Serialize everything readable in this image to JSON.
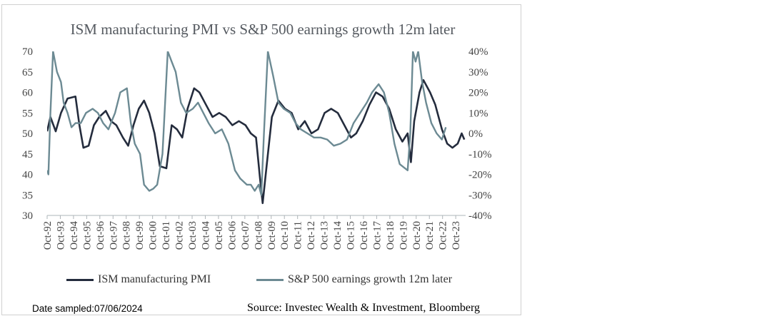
{
  "chart_data": {
    "type": "line",
    "title": "ISM manufacturing PMI vs S&P 500 earnings growth 12m later",
    "x_tick_labels": [
      "Oct-92",
      "Oct-93",
      "Oct-94",
      "Oct-95",
      "Oct-96",
      "Oct-97",
      "Oct-98",
      "Oct-99",
      "Oct-00",
      "Oct-01",
      "Oct-02",
      "Oct-03",
      "Oct-04",
      "Oct-05",
      "Oct-06",
      "Oct-07",
      "Oct-08",
      "Oct-09",
      "Oct-10",
      "Oct-11",
      "Oct-12",
      "Oct-13",
      "Oct-14",
      "Oct-15",
      "Oct-16",
      "Oct-17",
      "Oct-18",
      "Oct-19",
      "Oct-20",
      "Oct-21",
      "Oct-22",
      "Oct-23"
    ],
    "y_left": {
      "min": 30,
      "max": 70,
      "ticks": [
        "70",
        "65",
        "60",
        "55",
        "50",
        "45",
        "40",
        "35",
        "30"
      ]
    },
    "y_right": {
      "min": -40,
      "max": 40,
      "ticks": [
        "40%",
        "30%",
        "20%",
        "10%",
        "0%",
        "-10%",
        "-20%",
        "-30%",
        "-40%"
      ]
    },
    "series": [
      {
        "name": "ISM manufacturing PMI",
        "axis": "left",
        "color": "#242c3d",
        "x": [
          1992.75,
          1993.0,
          1993.4,
          1993.8,
          1994.3,
          1994.9,
          1995.2,
          1995.5,
          1995.9,
          1996.3,
          1996.7,
          1997.2,
          1997.6,
          1998.0,
          1998.5,
          1998.9,
          1999.3,
          1999.7,
          2000.1,
          2000.5,
          2000.9,
          2001.3,
          2001.8,
          2002.2,
          2002.6,
          2003.0,
          2003.4,
          2003.9,
          2004.3,
          2004.8,
          2005.3,
          2005.8,
          2006.3,
          2006.8,
          2007.3,
          2007.8,
          2008.2,
          2008.6,
          2008.9,
          2009.1,
          2009.4,
          2009.8,
          2010.3,
          2010.8,
          2011.3,
          2011.8,
          2012.3,
          2012.8,
          2013.3,
          2013.8,
          2014.3,
          2014.8,
          2015.3,
          2015.8,
          2016.2,
          2016.7,
          2017.2,
          2017.7,
          2018.2,
          2018.7,
          2019.2,
          2019.7,
          2020.1,
          2020.35,
          2020.6,
          2021.0,
          2021.3,
          2021.8,
          2022.2,
          2022.7,
          2023.1,
          2023.5,
          2023.9,
          2024.2,
          2024.4
        ],
        "values": [
          50.5,
          54,
          50.5,
          55,
          58.5,
          59,
          52,
          46.5,
          47,
          52,
          54,
          55.5,
          53,
          52,
          49,
          47,
          52,
          56,
          58,
          55,
          50,
          42,
          41.5,
          52,
          51,
          49,
          56,
          61,
          60,
          57,
          54,
          55,
          54,
          52,
          53,
          52,
          50,
          49,
          39,
          33,
          42,
          54,
          58,
          56,
          55,
          51,
          53,
          50,
          51,
          55,
          56,
          55,
          52,
          49,
          50,
          53,
          57,
          60,
          59,
          56,
          51,
          48,
          50,
          43,
          53,
          60,
          63,
          60,
          57,
          51,
          47.5,
          46.5,
          47.5,
          50,
          48.5
        ]
      },
      {
        "name": "S&P 500 earnings growth 12m later",
        "axis": "right",
        "color": "#6c8a93",
        "x": [
          1992.75,
          1992.85,
          1993.0,
          1993.2,
          1993.5,
          1993.8,
          1994.0,
          1994.3,
          1994.6,
          1994.9,
          1995.3,
          1995.7,
          1996.2,
          1996.6,
          1997.0,
          1997.4,
          1997.9,
          1998.3,
          1998.8,
          1999.1,
          1999.4,
          1999.8,
          2000.1,
          2000.5,
          2000.8,
          2001.1,
          2001.5,
          2001.9,
          2002.2,
          2002.5,
          2002.9,
          2003.3,
          2003.8,
          2004.2,
          2004.6,
          2005.0,
          2005.5,
          2006.0,
          2006.5,
          2007.0,
          2007.4,
          2007.9,
          2008.2,
          2008.5,
          2008.8,
          2009.0,
          2009.2,
          2009.5,
          2009.9,
          2010.3,
          2010.7,
          2011.2,
          2011.6,
          2012.0,
          2012.5,
          2013.0,
          2013.5,
          2014.0,
          2014.5,
          2015.0,
          2015.5,
          2016.0,
          2016.5,
          2017.0,
          2017.4,
          2017.9,
          2018.3,
          2018.7,
          2019.1,
          2019.5,
          2019.9,
          2020.1,
          2020.3,
          2020.5,
          2020.7,
          2020.9,
          2021.2,
          2021.5,
          2021.9,
          2022.3,
          2022.7,
          2023.0
        ],
        "values": [
          -18,
          -20,
          10,
          40,
          30,
          25,
          15,
          10,
          3,
          5,
          5,
          10,
          12,
          10,
          5,
          2,
          10,
          20,
          22,
          5,
          -5,
          -10,
          -25,
          -28,
          -27,
          -25,
          -10,
          40,
          35,
          30,
          15,
          10,
          12,
          15,
          10,
          5,
          0,
          2,
          -5,
          -18,
          -22,
          -25,
          -25,
          -28,
          -25,
          -30,
          0,
          40,
          28,
          15,
          12,
          10,
          5,
          2,
          0,
          -2,
          -2,
          -3,
          -6,
          -5,
          -3,
          5,
          10,
          15,
          20,
          24,
          20,
          10,
          -5,
          -15,
          -17,
          -18,
          0,
          40,
          35,
          40,
          25,
          15,
          5,
          0,
          -3,
          3
        ]
      }
    ]
  },
  "legend": {
    "series_1": "ISM manufacturing PMI",
    "series_2": "S&P 500 earnings growth 12m later"
  },
  "footer": {
    "date_sampled": "Date sampled:07/06/2024",
    "source": "Source: Investec Wealth & Investment, Bloomberg"
  }
}
